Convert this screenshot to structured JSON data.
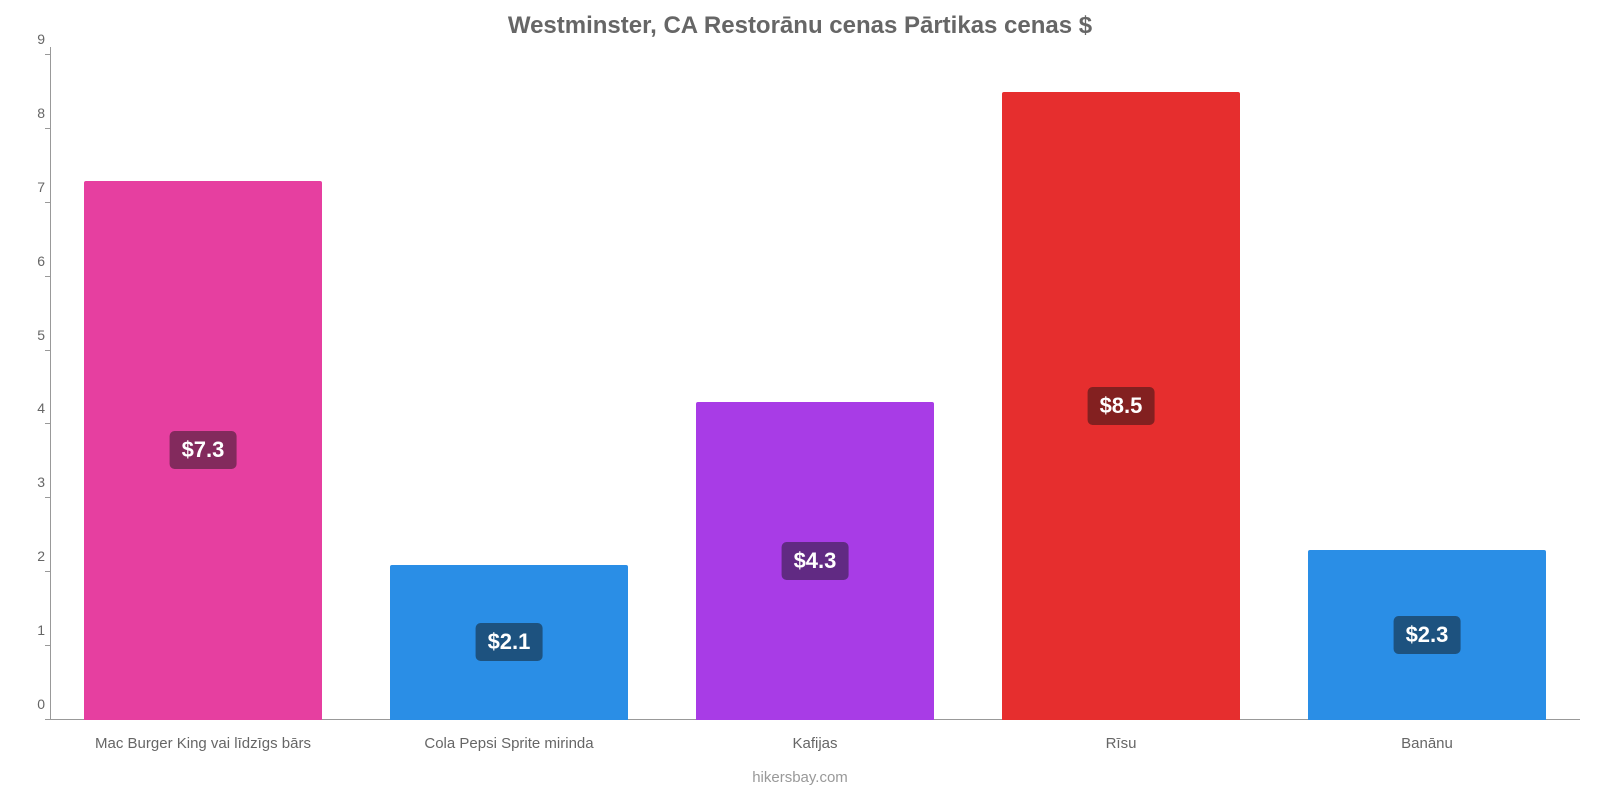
{
  "chart": {
    "type": "bar",
    "title": "Westminster, CA Restorānu cenas Pārtikas cenas $",
    "title_color": "#666666",
    "title_fontsize": 24,
    "background_color": "#ffffff",
    "axis_color": "#999999",
    "label_color": "#666666",
    "label_fontsize": 15,
    "value_fontsize": 22,
    "badge_text_color": "#ffffff",
    "ylim": [
      0,
      9
    ],
    "ytick_step": 1,
    "yticks": [
      0,
      1,
      2,
      3,
      4,
      5,
      6,
      7,
      8,
      9
    ],
    "bar_width_pct": 78,
    "bars": [
      {
        "category": "Mac Burger King vai līdzīgs bārs",
        "value": 7.3,
        "label": "$7.3",
        "color": "#e63fa0",
        "badge_bg": "#832a5d"
      },
      {
        "category": "Cola Pepsi Sprite mirinda",
        "value": 2.1,
        "label": "$2.1",
        "color": "#2a8ee6",
        "badge_bg": "#1d527f"
      },
      {
        "category": "Kafijas",
        "value": 4.3,
        "label": "$4.3",
        "color": "#a83ce6",
        "badge_bg": "#612a83"
      },
      {
        "category": "Rīsu",
        "value": 8.5,
        "label": "$8.5",
        "color": "#e62e2e",
        "badge_bg": "#832020"
      },
      {
        "category": "Banānu",
        "value": 2.3,
        "label": "$2.3",
        "color": "#2a8ee6",
        "badge_bg": "#1d527f"
      }
    ],
    "footer": "hikersbay.com",
    "footer_color": "#999999"
  }
}
